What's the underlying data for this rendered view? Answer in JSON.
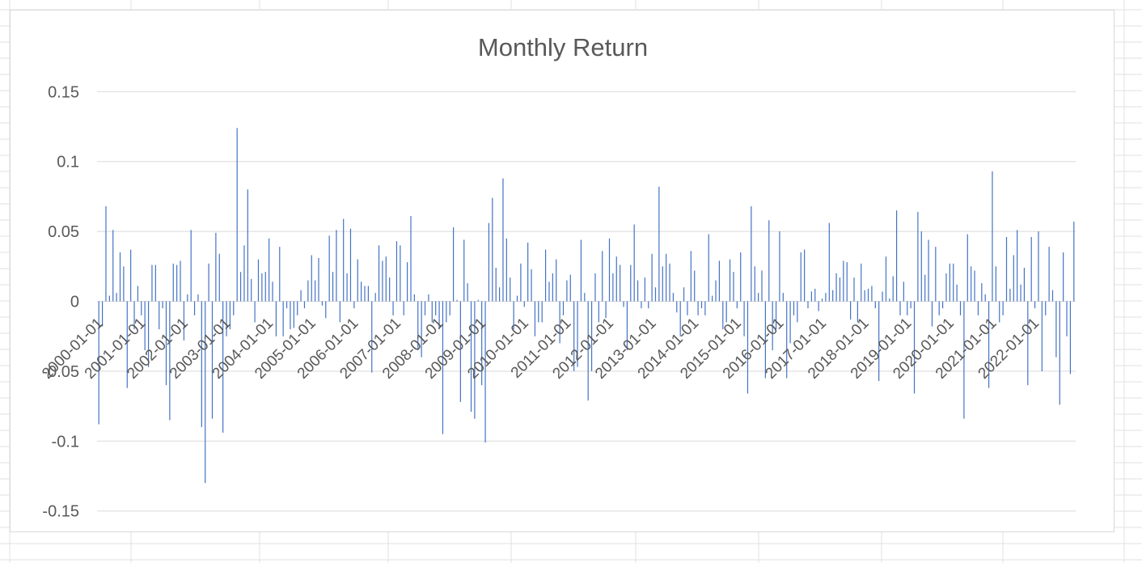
{
  "chart_data": {
    "type": "bar",
    "title": "Monthly Return",
    "xlabel": "",
    "ylabel": "",
    "ylim": [
      -0.17,
      0.17
    ],
    "yticks": [
      0.15,
      0.1,
      0.05,
      0,
      -0.05,
      -0.1,
      -0.15
    ],
    "ytick_labels": [
      "0.15",
      "0.1",
      "0.05",
      "0",
      "-0.05",
      "-0.1",
      "-0.15"
    ],
    "grid": true,
    "legend": "none",
    "x_start": "2000-01",
    "x_tick_labels": [
      "2000-01-01",
      "2001-01-01",
      "2002-01-01",
      "2003-01-01",
      "2004-01-01",
      "2005-01-01",
      "2006-01-01",
      "2007-01-01",
      "2008-01-01",
      "2009-01-01",
      "2010-01-01",
      "2011-01-01",
      "2012-01-01",
      "2013-01-01",
      "2014-01-01",
      "2015-01-01",
      "2016-01-01",
      "2017-01-01",
      "2018-01-01",
      "2019-01-01",
      "2020-01-01",
      "2021-01-01",
      "2022-01-01"
    ],
    "series": [
      {
        "color": "#4472c4",
        "values": [
          -0.088,
          -0.018,
          0.068,
          0.004,
          0.051,
          0.006,
          0.035,
          0.025,
          -0.062,
          0.037,
          -0.02,
          0.011,
          -0.01,
          -0.035,
          -0.047,
          0.026,
          0.026,
          -0.02,
          -0.005,
          -0.06,
          -0.085,
          0.027,
          0.026,
          0.029,
          -0.028,
          0.005,
          0.051,
          -0.01,
          0.005,
          -0.09,
          -0.13,
          0.027,
          -0.084,
          0.049,
          0.034,
          -0.094,
          -0.025,
          -0.02,
          -0.01,
          0.124,
          0.021,
          0.04,
          0.08,
          0.016,
          -0.015,
          0.03,
          0.02,
          0.021,
          0.045,
          0.014,
          -0.025,
          0.039,
          -0.025,
          -0.005,
          -0.02,
          -0.019,
          -0.01,
          0.008,
          -0.005,
          0.015,
          0.033,
          0.015,
          0.031,
          -0.003,
          -0.012,
          0.047,
          0.021,
          0.051,
          -0.015,
          0.059,
          0.02,
          0.052,
          -0.005,
          0.03,
          0.014,
          0.011,
          0.011,
          -0.051,
          0.006,
          0.04,
          0.029,
          0.032,
          0.017,
          -0.01,
          0.043,
          0.04,
          -0.01,
          0.028,
          0.061,
          0.005,
          -0.035,
          -0.04,
          -0.01,
          0.005,
          -0.015,
          -0.01,
          -0.02,
          -0.095,
          -0.015,
          -0.01,
          0.053,
          0.001,
          -0.072,
          0.044,
          0.013,
          -0.079,
          -0.084,
          0.001,
          -0.06,
          -0.101,
          0.056,
          0.074,
          0.024,
          0.01,
          0.088,
          0.045,
          0.017,
          -0.02,
          0.004,
          0.027,
          -0.004,
          0.042,
          0.023,
          -0.025,
          -0.015,
          -0.015,
          0.037,
          0.014,
          0.02,
          0.03,
          -0.03,
          -0.01,
          0.015,
          0.019,
          -0.05,
          -0.047,
          0.044,
          0.006,
          -0.071,
          -0.05,
          0.02,
          -0.015,
          0.036,
          -0.012,
          0.045,
          0.02,
          0.032,
          0.026,
          -0.004,
          -0.035,
          0.026,
          0.055,
          0.015,
          -0.005,
          0.017,
          -0.005,
          0.034,
          0.01,
          0.082,
          0.025,
          0.034,
          0.027,
          0.006,
          -0.008,
          -0.025,
          0.01,
          -0.01,
          0.036,
          0.022,
          -0.01,
          -0.005,
          -0.01,
          0.048,
          0.004,
          0.015,
          0.029,
          -0.02,
          -0.015,
          0.03,
          0.021,
          -0.005,
          0.035,
          -0.025,
          -0.066,
          0.068,
          0.025,
          0.006,
          0.022,
          -0.055,
          0.058,
          -0.035,
          -0.02,
          0.05,
          0.006,
          -0.055,
          -0.03,
          -0.01,
          -0.015,
          0.035,
          0.037,
          -0.005,
          0.007,
          0.009,
          -0.007,
          0.002,
          0.006,
          0.056,
          0.008,
          0.02,
          0.017,
          0.029,
          0.028,
          -0.013,
          0.017,
          -0.015,
          0.027,
          0.008,
          0.009,
          0.011,
          -0.005,
          -0.057,
          0.007,
          0.032,
          0.002,
          0.018,
          0.065,
          -0.01,
          0.014,
          -0.01,
          -0.005,
          -0.066,
          0.064,
          0.05,
          0.019,
          0.044,
          -0.018,
          0.039,
          -0.01,
          -0.005,
          0.02,
          0.027,
          0.027,
          0.012,
          -0.01,
          -0.084,
          0.048,
          0.025,
          0.022,
          -0.01,
          0.013,
          0.005,
          -0.062,
          0.093,
          0.025,
          -0.015,
          -0.01,
          0.046,
          0.009,
          0.033,
          0.051,
          0.012,
          0.024,
          -0.06,
          0.046,
          -0.005,
          0.05,
          -0.05,
          -0.01,
          0.039,
          0.008,
          -0.04,
          -0.074,
          0.035,
          -0.025,
          -0.052,
          0.057
        ]
      }
    ]
  }
}
